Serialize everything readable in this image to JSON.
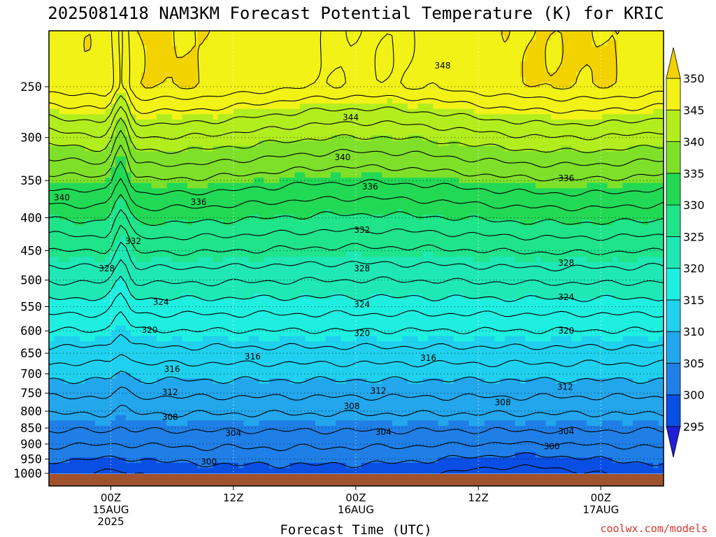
{
  "chart_data": {
    "type": "heatmap",
    "title": "2025081418 NAM3KM Forecast Potential Temperature (K) for KRIC",
    "xlabel": "Forecast Time (UTC)",
    "ylabel": "",
    "credit": "coolwx.com/models",
    "y_axis": {
      "quantity": "pressure (hPa)",
      "scale": "log, inverted",
      "ticks": [
        250,
        300,
        350,
        400,
        450,
        500,
        550,
        600,
        650,
        700,
        750,
        800,
        850,
        900,
        950,
        1000
      ],
      "grid": "dotted"
    },
    "x_axis": {
      "ticks": [
        {
          "hour": 6,
          "lines": [
            "00Z",
            "15AUG",
            "2025"
          ]
        },
        {
          "hour": 18,
          "lines": [
            "12Z"
          ]
        },
        {
          "hour": 30,
          "lines": [
            "00Z",
            "16AUG"
          ]
        },
        {
          "hour": 42,
          "lines": [
            "12Z"
          ]
        },
        {
          "hour": 54,
          "lines": [
            "00Z",
            "17AUG"
          ]
        }
      ],
      "range_hours": [
        0,
        60
      ],
      "grid": "dotted"
    },
    "colorbar": {
      "levels": [
        295,
        300,
        305,
        310,
        315,
        320,
        325,
        330,
        335,
        340,
        345,
        350
      ],
      "colors": [
        "#1f1fd9",
        "#0a4fe3",
        "#1f7fe6",
        "#23a6ec",
        "#1fd1ee",
        "#1fefe0",
        "#1fe8b5",
        "#1fe48a",
        "#22d955",
        "#7fe02a",
        "#b2ed1e",
        "#f2f217",
        "#f2d200"
      ],
      "extend": "both"
    },
    "contour_interval_K": 2,
    "contour_labels": [
      {
        "value": 348,
        "hour": 38.5,
        "p": 232
      },
      {
        "value": 344,
        "hour": 29.5,
        "p": 279
      },
      {
        "value": 340,
        "hour": 1.2,
        "p": 372
      },
      {
        "value": 340,
        "hour": 28.7,
        "p": 322
      },
      {
        "value": 336,
        "hour": 0.0,
        "p": 386
      },
      {
        "value": 336,
        "hour": 14.6,
        "p": 378
      },
      {
        "value": 336,
        "hour": 31.4,
        "p": 358
      },
      {
        "value": 336,
        "hour": 50.6,
        "p": 347
      },
      {
        "value": 332,
        "hour": 8.2,
        "p": 435
      },
      {
        "value": 332,
        "hour": 30.6,
        "p": 418
      },
      {
        "value": 328,
        "hour": 5.6,
        "p": 480
      },
      {
        "value": 328,
        "hour": 30.6,
        "p": 480
      },
      {
        "value": 328,
        "hour": 50.6,
        "p": 470
      },
      {
        "value": 324,
        "hour": 10.9,
        "p": 541
      },
      {
        "value": 324,
        "hour": 30.6,
        "p": 546
      },
      {
        "value": 324,
        "hour": 50.6,
        "p": 532
      },
      {
        "value": 320,
        "hour": 9.8,
        "p": 598
      },
      {
        "value": 320,
        "hour": 30.6,
        "p": 605
      },
      {
        "value": 320,
        "hour": 50.6,
        "p": 600
      },
      {
        "value": 316,
        "hour": 19.9,
        "p": 658
      },
      {
        "value": 316,
        "hour": 37.1,
        "p": 661
      },
      {
        "value": 316,
        "hour": 12.0,
        "p": 688
      },
      {
        "value": 312,
        "hour": 11.8,
        "p": 748
      },
      {
        "value": 312,
        "hour": 32.2,
        "p": 744
      },
      {
        "value": 312,
        "hour": 50.5,
        "p": 734
      },
      {
        "value": 308,
        "hour": 11.8,
        "p": 817
      },
      {
        "value": 308,
        "hour": 29.6,
        "p": 786
      },
      {
        "value": 308,
        "hour": 44.4,
        "p": 775
      },
      {
        "value": 304,
        "hour": 18.0,
        "p": 866
      },
      {
        "value": 304,
        "hour": 32.7,
        "p": 862
      },
      {
        "value": 304,
        "hour": 50.6,
        "p": 860
      },
      {
        "value": 300,
        "hour": 15.6,
        "p": 960
      },
      {
        "value": 300,
        "hour": 49.2,
        "p": 908
      }
    ]
  }
}
